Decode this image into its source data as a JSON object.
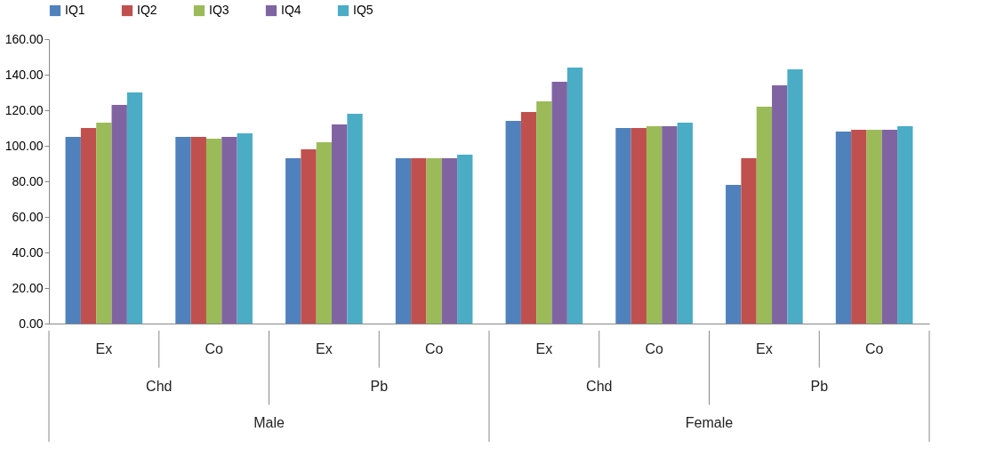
{
  "chart_data": {
    "type": "bar",
    "categories": [
      "Ex",
      "Co",
      "Ex",
      "Co",
      "Ex",
      "Co",
      "Ex",
      "Co"
    ],
    "series": [
      {
        "name": "IQ1",
        "color": "#4f81bd",
        "values": [
          105,
          105,
          93,
          93,
          114,
          110,
          78,
          108
        ]
      },
      {
        "name": "IQ2",
        "color": "#c0504d",
        "values": [
          110,
          105,
          98,
          93,
          119,
          110,
          93,
          109
        ]
      },
      {
        "name": "IQ3",
        "color": "#9bbb59",
        "values": [
          113,
          104,
          102,
          93,
          125,
          111,
          122,
          109
        ]
      },
      {
        "name": "IQ4",
        "color": "#8064a2",
        "values": [
          123,
          105,
          112,
          93,
          136,
          111,
          134,
          109
        ]
      },
      {
        "name": "IQ5",
        "color": "#4bacc6",
        "values": [
          130,
          107,
          118,
          95,
          144,
          113,
          143,
          111
        ]
      }
    ],
    "ylim": [
      0,
      160
    ],
    "yticks": [
      {
        "value": 0,
        "label": "0.00"
      },
      {
        "value": 20,
        "label": "20.00"
      },
      {
        "value": 40,
        "label": "40.00"
      },
      {
        "value": 60,
        "label": "60.00"
      },
      {
        "value": 80,
        "label": "80.00"
      },
      {
        "value": 100,
        "label": "100.00"
      },
      {
        "value": 120,
        "label": "120.00"
      },
      {
        "value": 140,
        "label": "140.00"
      },
      {
        "value": 160,
        "label": "160.00"
      }
    ],
    "annotations": [
      "Chd",
      "Pb",
      "Chd",
      "Pb",
      "Male",
      "Female"
    ],
    "grid": false,
    "legend": "top"
  }
}
